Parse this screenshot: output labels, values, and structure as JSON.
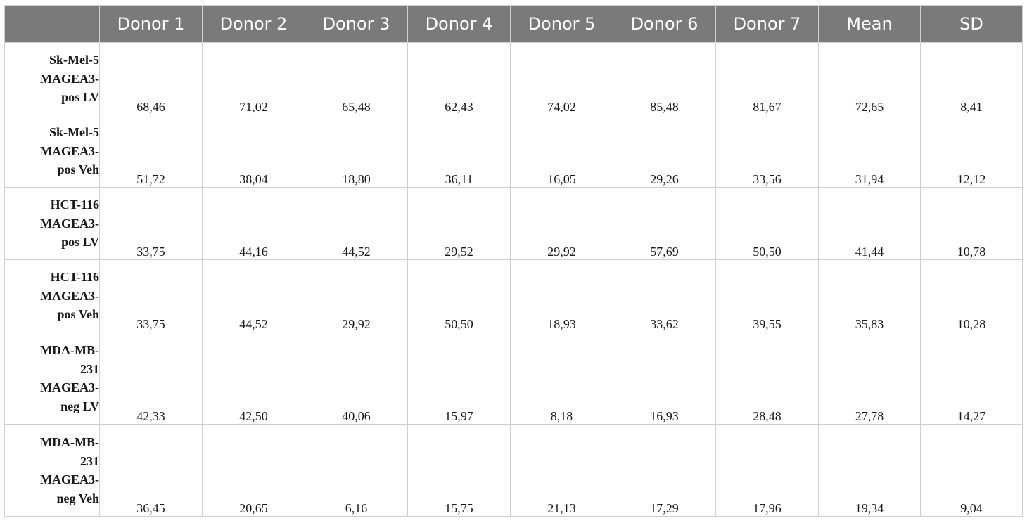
{
  "table": {
    "columns": [
      "",
      "Donor 1",
      "Donor 2",
      "Donor 3",
      "Donor 4",
      "Donor 5",
      "Donor 6",
      "Donor 7",
      "Mean",
      "SD"
    ],
    "rows": [
      {
        "label_lines": [
          "Sk-Mel-5",
          "MAGEA3-",
          "pos LV"
        ],
        "values": [
          "68,46",
          "71,02",
          "65,48",
          "62,43",
          "74,02",
          "85,48",
          "81,67",
          "72,65",
          "8,41"
        ]
      },
      {
        "label_lines": [
          "Sk-Mel-5",
          "MAGEA3-",
          "pos Veh"
        ],
        "values": [
          "51,72",
          "38,04",
          "18,80",
          "36,11",
          "16,05",
          "29,26",
          "33,56",
          "31,94",
          "12,12"
        ]
      },
      {
        "label_lines": [
          "HCT-116",
          "MAGEA3-",
          "pos LV"
        ],
        "values": [
          "33,75",
          "44,16",
          "44,52",
          "29,52",
          "29,92",
          "57,69",
          "50,50",
          "41,44",
          "10,78"
        ]
      },
      {
        "label_lines": [
          "HCT-116",
          "MAGEA3-",
          "pos Veh"
        ],
        "values": [
          "33,75",
          "44,52",
          "29,92",
          "50,50",
          "18,93",
          "33,62",
          "39,55",
          "35,83",
          "10,28"
        ]
      },
      {
        "label_lines": [
          "MDA-MB-",
          "231",
          "MAGEA3-",
          "neg LV"
        ],
        "values": [
          "42,33",
          "42,50",
          "40,06",
          "15,97",
          "8,18",
          "16,93",
          "28,48",
          "27,78",
          "14,27"
        ]
      },
      {
        "label_lines": [
          "MDA-MB-",
          "231",
          "MAGEA3-",
          "neg Veh"
        ],
        "values": [
          "36,45",
          "20,65",
          "6,16",
          "15,75",
          "21,13",
          "17,29",
          "17,96",
          "19,34",
          "9,04"
        ]
      }
    ]
  }
}
